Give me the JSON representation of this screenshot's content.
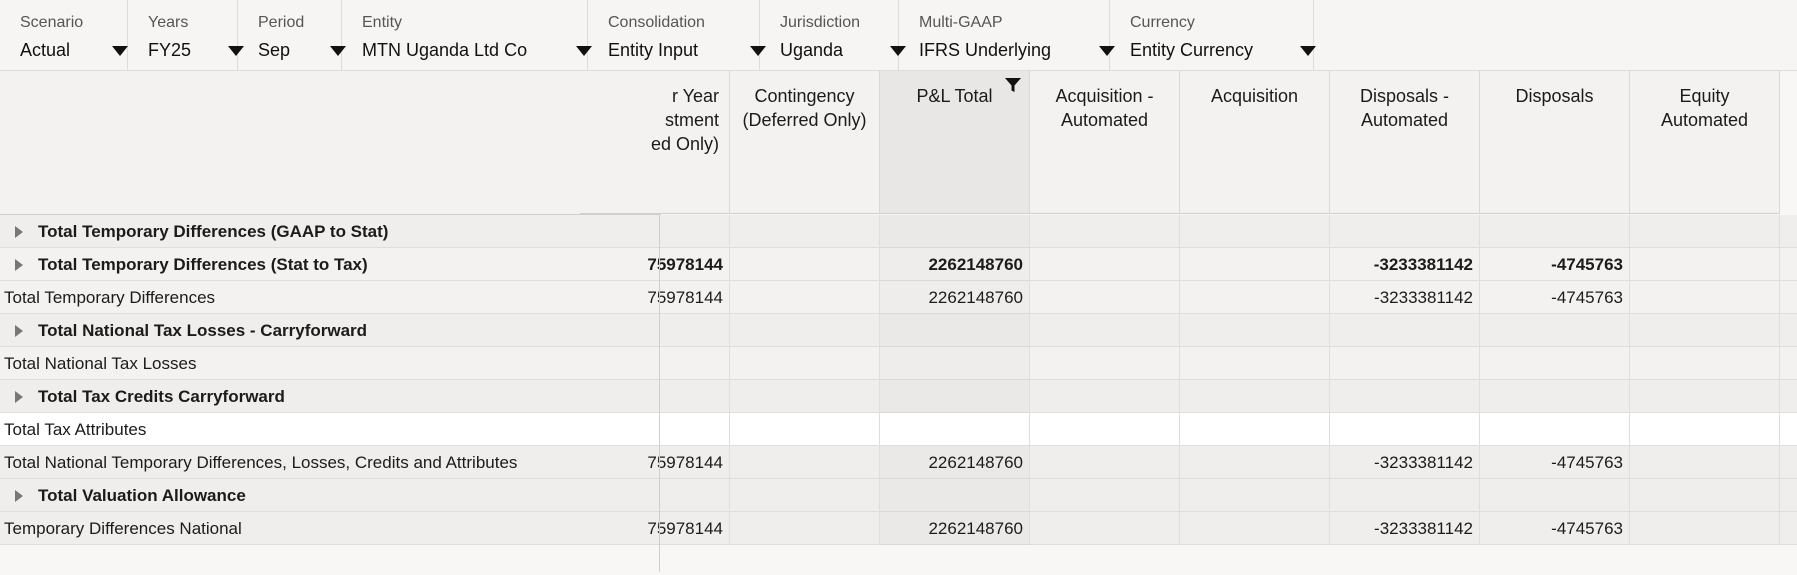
{
  "pov": [
    {
      "label": "Scenario",
      "value": "Actual"
    },
    {
      "label": "Years",
      "value": "FY25"
    },
    {
      "label": "Period",
      "value": "Sep"
    },
    {
      "label": "Entity",
      "value": "MTN Uganda Ltd Co"
    },
    {
      "label": "Consolidation",
      "value": "Entity Input"
    },
    {
      "label": "Jurisdiction",
      "value": "Uganda"
    },
    {
      "label": "Multi-GAAP",
      "value": "IFRS Underlying"
    },
    {
      "label": "Currency",
      "value": "Entity Currency"
    }
  ],
  "columns": [
    {
      "header": "r Year\nstment\ned Only)",
      "partial": true
    },
    {
      "header": "Contingency\n(Deferred Only)"
    },
    {
      "header": "P&L Total",
      "filtered": true
    },
    {
      "header": "Acquisition -\nAutomated"
    },
    {
      "header": "Acquisition"
    },
    {
      "header": "Disposals -\nAutomated"
    },
    {
      "header": "Disposals"
    },
    {
      "header": "Equity\nAutomated"
    }
  ],
  "rows": [
    {
      "label": "Total Temporary Differences (GAAP to Stat)",
      "bold": true,
      "expandable": true,
      "bg": "#efeeed",
      "cells": [
        "",
        "",
        "",
        "",
        "",
        "",
        "",
        ""
      ]
    },
    {
      "label": "Total Temporary Differences (Stat to Tax)",
      "bold": true,
      "expandable": true,
      "bg": "#f3f2f1",
      "cells": [
        "75978144",
        "",
        "2262148760",
        "",
        "",
        "-3233381142",
        "-4745763",
        ""
      ]
    },
    {
      "label": "Total Temporary Differences",
      "bold": false,
      "expandable": false,
      "bg": "#f3f2f1",
      "cells": [
        "75978144",
        "",
        "2262148760",
        "",
        "",
        "-3233381142",
        "-4745763",
        ""
      ]
    },
    {
      "label": "Total National Tax Losses - Carryforward",
      "bold": true,
      "expandable": true,
      "bg": "#efeeed",
      "cells": [
        "",
        "",
        "",
        "",
        "",
        "",
        "",
        ""
      ]
    },
    {
      "label": "Total National Tax Losses",
      "bold": false,
      "expandable": false,
      "bg": "#f3f2f1",
      "cells": [
        "",
        "",
        "",
        "",
        "",
        "",
        "",
        ""
      ]
    },
    {
      "label": "Total Tax Credits Carryforward",
      "bold": true,
      "expandable": true,
      "bg": "#efeeed",
      "cells": [
        "",
        "",
        "",
        "",
        "",
        "",
        "",
        ""
      ]
    },
    {
      "label": "Total Tax Attributes",
      "bold": false,
      "expandable": false,
      "bg": "#ffffff",
      "cells": [
        "",
        "",
        "",
        "",
        "",
        "",
        "",
        ""
      ]
    },
    {
      "label": "Total National Temporary Differences, Losses, Credits and Attributes",
      "bold": false,
      "expandable": false,
      "bg": "#efeeed",
      "cells": [
        "75978144",
        "",
        "2262148760",
        "",
        "",
        "-3233381142",
        "-4745763",
        ""
      ]
    },
    {
      "label": "Total Valuation Allowance",
      "bold": true,
      "expandable": true,
      "bg": "#efeeed",
      "cells": [
        "",
        "",
        "",
        "",
        "",
        "",
        "",
        ""
      ]
    },
    {
      "label": "Temporary Differences National",
      "bold": false,
      "expandable": false,
      "bg": "#efeeed",
      "cells": [
        "75978144",
        "",
        "2262148760",
        "",
        "",
        "-3233381142",
        "-4745763",
        ""
      ]
    }
  ],
  "colors": {
    "header_bg": "#f3f2f1",
    "active_col_bg": "#e8e7e6",
    "grid_line": "#dedede"
  }
}
